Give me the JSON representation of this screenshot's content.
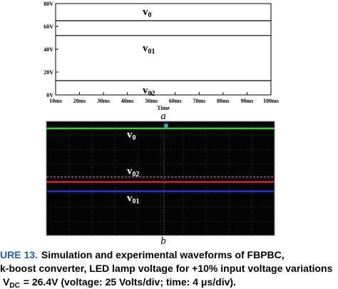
{
  "chart_data": {
    "type": "line",
    "xlabel": "Time",
    "panel_label": "a",
    "xlim": [
      10,
      100
    ],
    "xticks": [
      {
        "value": 10,
        "label": "10ms"
      },
      {
        "value": 20,
        "label": "20ms"
      },
      {
        "value": 30,
        "label": "30ms"
      },
      {
        "value": 40,
        "label": "40ms"
      },
      {
        "value": 50,
        "label": "50ms"
      },
      {
        "value": 60,
        "label": "60ms"
      },
      {
        "value": 70,
        "label": "70ms"
      },
      {
        "value": 80,
        "label": "80ms"
      },
      {
        "value": 90,
        "label": "90ms"
      },
      {
        "value": 100,
        "label": "100ms"
      }
    ],
    "ylim": [
      0,
      80
    ],
    "yticks": [
      {
        "value": 0,
        "label": "0V"
      },
      {
        "value": 20,
        "label": "20V"
      },
      {
        "value": 40,
        "label": "40V"
      },
      {
        "value": 60,
        "label": "60V"
      },
      {
        "value": 80,
        "label": "80V"
      }
    ],
    "x": [
      10,
      100
    ],
    "series": [
      {
        "color": "#000000",
        "values": [
          65,
          65
        ]
      },
      {
        "color": "#000000",
        "values": [
          52,
          52
        ]
      },
      {
        "color": "#000000",
        "values": [
          12.5,
          12.5
        ]
      }
    ],
    "annotations": [
      {
        "text": "v",
        "sub": "0"
      },
      {
        "text": "v",
        "sub": "01"
      },
      {
        "text": "v",
        "sub": "02"
      }
    ]
  },
  "scope": {
    "panel_label": "b",
    "annotations": [
      {
        "text": "v",
        "sub": "0"
      },
      {
        "text": "v",
        "sub": "02"
      },
      {
        "text": "v",
        "sub": "01"
      }
    ]
  },
  "caption": {
    "figure_label": "URE 13.",
    "line1": "Simulation and experimental waveforms of FBPBC,",
    "line2": "k-boost converter, LED lamp voltage for +10% input voltage variations",
    "line3_main": "V",
    "line3_sub": "DC",
    "line3_rest": "= 26.4V (voltage: 25 Volts/div; time: 4 μs/div)."
  }
}
